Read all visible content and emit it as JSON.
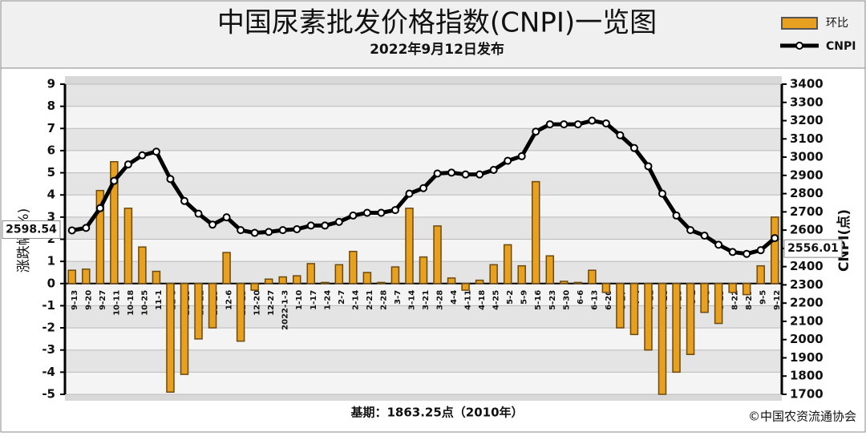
{
  "chart_data": {
    "type": "bar_line",
    "title": "中国尿素批发价格指数(CNPI)一览图",
    "subtitle": "2022年9月12日发布",
    "ylabel": "涨跌幅(%)",
    "y2label": "CNPI(点)",
    "footer": "基期：1863.25点（2010年）",
    "source": "©中国农资流通协会",
    "categories": [
      "9-13",
      "9-20",
      "9-27",
      "10-11",
      "10-18",
      "10-25",
      "11-1",
      "11-8",
      "11-15",
      "11-22",
      "11-29",
      "12-6",
      "12-13",
      "12-20",
      "12-27",
      "2022-1-3",
      "1-10",
      "1-17",
      "1-24",
      "2-7",
      "2-14",
      "2-21",
      "2-28",
      "3-7",
      "3-14",
      "3-21",
      "3-28",
      "4-4",
      "4-11",
      "4-18",
      "4-25",
      "5-2",
      "5-9",
      "5-16",
      "5-23",
      "5-30",
      "6-6",
      "6-13",
      "6-20",
      "6-27",
      "7-4",
      "7-11",
      "7-18",
      "7-25",
      "8-1",
      "8-8",
      "8-15",
      "8-22",
      "8-29",
      "9-5",
      "9-12"
    ],
    "series": [
      {
        "name": "环比",
        "type": "bar",
        "color": "#e8a020",
        "values": [
          0.6,
          0.65,
          4.2,
          5.5,
          3.4,
          1.65,
          0.55,
          -4.9,
          -4.1,
          -2.5,
          -2.0,
          1.4,
          -2.6,
          -0.3,
          0.2,
          0.3,
          0.35,
          0.9,
          0.05,
          0.85,
          1.45,
          0.5,
          0.05,
          0.75,
          3.4,
          1.2,
          2.6,
          0.25,
          -0.3,
          0.15,
          0.85,
          1.75,
          0.8,
          4.6,
          1.25,
          0.1,
          0.05,
          0.6,
          -0.4,
          -2.0,
          -2.3,
          -3.0,
          -5.0,
          -4.0,
          -3.2,
          -1.3,
          -1.8,
          -0.4,
          -0.5,
          0.8,
          3.0
        ]
      },
      {
        "name": "CNPI",
        "type": "line",
        "axis": "y2",
        "color": "#000000",
        "values": [
          2598.54,
          2612,
          2720,
          2870,
          2960,
          3010,
          3030,
          2880,
          2760,
          2690,
          2630,
          2670,
          2600,
          2585,
          2590,
          2600,
          2605,
          2625,
          2625,
          2645,
          2680,
          2695,
          2695,
          2710,
          2800,
          2830,
          2910,
          2915,
          2905,
          2905,
          2930,
          2980,
          3005,
          3140,
          3180,
          3180,
          3180,
          3200,
          3185,
          3120,
          3050,
          2950,
          2800,
          2680,
          2600,
          2570,
          2520,
          2480,
          2470,
          2490,
          2556.01
        ],
        "value_labels": [
          "2598.54",
          null,
          null,
          null,
          null,
          null,
          null,
          null,
          null,
          null,
          null,
          null,
          null,
          null,
          null,
          null,
          null,
          null,
          null,
          null,
          null,
          null,
          null,
          null,
          null,
          null,
          null,
          null,
          null,
          null,
          null,
          null,
          null,
          null,
          null,
          null,
          null,
          null,
          null,
          null,
          null,
          null,
          null,
          null,
          null,
          null,
          null,
          null,
          null,
          null,
          "2556.01"
        ]
      }
    ],
    "ylim": [
      -5,
      9
    ],
    "yticks": [
      -5,
      -4,
      -3,
      -2,
      -1,
      0,
      1,
      2,
      3,
      4,
      5,
      6,
      7,
      8,
      9
    ],
    "y2lim": [
      1700,
      3400
    ],
    "y2ticks": [
      1700,
      1800,
      1900,
      2000,
      2100,
      2200,
      2300,
      2400,
      2500,
      2600,
      2700,
      2800,
      2900,
      3000,
      3100,
      3200,
      3300,
      3400
    ],
    "grid": true
  }
}
